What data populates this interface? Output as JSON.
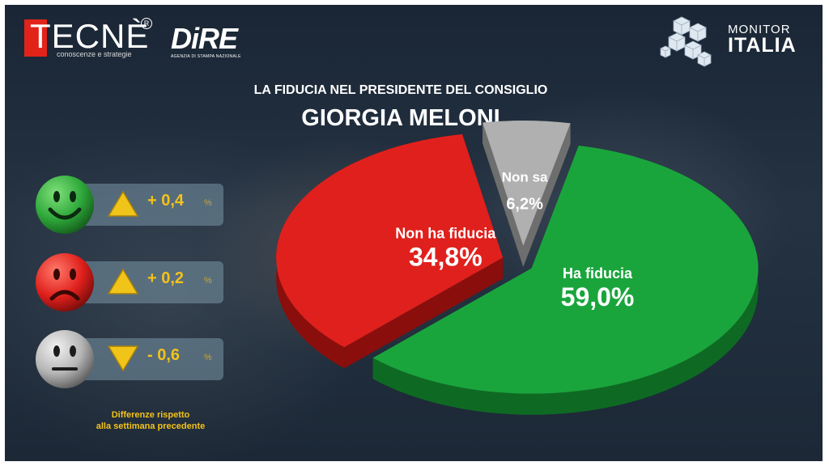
{
  "brand": {
    "tecne": "TECNÈ",
    "tecne_reg": "R",
    "tecne_tagline": "conoscenze e strategie",
    "dire": "DiRE",
    "dire_tagline": "AGENZIA DI STAMPA NAZIONALE",
    "monitor_line1": "MONITOR",
    "monitor_line2": "ITALIA"
  },
  "subtitle": "LA FIDUCIA NEL PRESIDENTE DEL CONSIGLIO",
  "title": "GIORGIA MELONI",
  "changes": [
    {
      "face": "happy",
      "face_color": "#2ea83a",
      "direction": "up",
      "delta": "+ 0,4",
      "unit": "%"
    },
    {
      "face": "sad",
      "face_color": "#e0201c",
      "direction": "up",
      "delta": "+ 0,2",
      "unit": "%"
    },
    {
      "face": "neutral",
      "face_color": "#b4b4b4",
      "direction": "down",
      "delta": "- 0,6",
      "unit": "%"
    }
  ],
  "note_line1": "Differenze rispetto",
  "note_line2": "alla settimana precedente",
  "colors": {
    "green": "#1aa53c",
    "red": "#e0201c",
    "grey": "#b0b0b0",
    "accent": "#f3c21a"
  },
  "chart_data": {
    "type": "pie",
    "title": "GIORGIA MELONI",
    "slices": [
      {
        "label": "Ha fiducia",
        "value": 59.0,
        "display": "59,0%",
        "color": "#1aa53c"
      },
      {
        "label": "Non ha fiducia",
        "value": 34.8,
        "display": "34,8%",
        "color": "#e0201c"
      },
      {
        "label": "Non sa",
        "value": 6.2,
        "display": "6,2%",
        "color": "#b0b0b0"
      }
    ]
  }
}
